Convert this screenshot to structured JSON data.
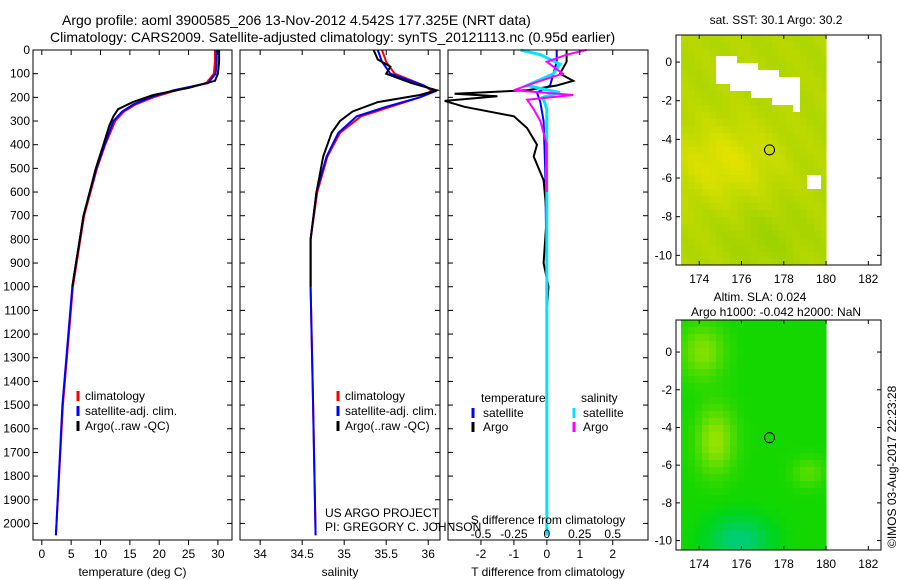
{
  "chart_data": {
    "title": "Argo profile: aoml 3900585_206 13-Nov-2012 4.542S 177.325E (NRT data)",
    "subtitle": "Climatology: CARS2009. Satellite-adjusted climatology: synTS_20121113.nc (0.95d earlier)",
    "depth_axis": {
      "ticks": [
        0,
        100,
        200,
        300,
        400,
        500,
        600,
        700,
        800,
        900,
        1000,
        1100,
        1200,
        1300,
        1400,
        1500,
        1600,
        1700,
        1800,
        1900,
        2000
      ],
      "ylim": [
        0,
        2070
      ]
    },
    "panels": [
      {
        "type": "line",
        "xlabel": "temperature (deg C)",
        "xlim": [
          -1.5,
          32.4
        ],
        "xticks": [
          0,
          5,
          10,
          15,
          20,
          25,
          30
        ],
        "legend": [
          "climatology",
          "satellite-adj. clim.",
          "Argo(..raw -QC)"
        ],
        "series": [
          {
            "name": "climatology",
            "color": "#ff0000",
            "depth": [
              0,
              50,
              100,
              140,
              170,
              200,
              230,
              260,
              300,
              400,
              500,
              700,
              1000,
              1500,
              2050
            ],
            "values": [
              29.5,
              29.5,
              29.3,
              28,
              23,
              19,
              16,
              14,
              12.5,
              10.8,
              9.4,
              7.2,
              5.3,
              3.6,
              2.4
            ]
          },
          {
            "name": "satellite-adj. clim.",
            "color": "#0000ff",
            "depth": [
              0,
              50,
              100,
              140,
              170,
              200,
              230,
              260,
              300,
              400,
              500,
              700,
              1000,
              1500,
              2050
            ],
            "values": [
              29.8,
              29.8,
              29.6,
              28.3,
              22.5,
              18.5,
              15.6,
              13.7,
              12.2,
              10.7,
              9.3,
              7.1,
              5.2,
              3.5,
              2.4
            ]
          },
          {
            "name": "Argo(..raw -QC)",
            "color": "#000000",
            "depth": [
              0,
              50,
              100,
              130,
              160,
              190,
              220,
              250,
              280,
              320,
              400,
              500,
              700,
              1000
            ],
            "values": [
              30.2,
              30.2,
              30,
              29.5,
              25,
              19,
              15.5,
              13,
              12.2,
              11.5,
              10.5,
              9.2,
              7.1,
              5.2
            ]
          }
        ]
      },
      {
        "type": "line",
        "xlabel": "salinity",
        "xlim": [
          33.76,
          36.14
        ],
        "xticks": [
          34,
          34.5,
          35,
          35.5,
          36
        ],
        "xticklabels": [
          "34",
          "34.5",
          "35",
          "35.5",
          "36"
        ],
        "legend": [
          "climatology",
          "satellite-adj. clim.",
          "Argo(..raw -QC)"
        ],
        "annotation": [
          "US ARGO PROJECT",
          "PI: GREGORY C. JOHNSON"
        ],
        "series": [
          {
            "name": "climatology",
            "color": "#ff0000",
            "depth": [
              0,
              50,
              100,
              150,
              175,
              200,
              240,
              280,
              350,
              450,
              600,
              800,
              1000,
              1500,
              2050
            ],
            "values": [
              35.45,
              35.5,
              35.6,
              35.95,
              36.05,
              35.9,
              35.55,
              35.2,
              34.95,
              34.8,
              34.68,
              34.6,
              34.6,
              34.63,
              34.66
            ]
          },
          {
            "name": "satellite-adj. clim.",
            "color": "#0000ff",
            "depth": [
              0,
              50,
              100,
              150,
              175,
              200,
              240,
              280,
              350,
              450,
              600,
              800,
              1000,
              1500,
              2050
            ],
            "values": [
              35.4,
              35.45,
              35.55,
              35.95,
              36.08,
              35.9,
              35.5,
              35.15,
              34.93,
              34.79,
              34.67,
              34.6,
              34.6,
              34.63,
              34.66
            ]
          },
          {
            "name": "Argo(..raw -QC)",
            "color": "#000000",
            "depth": [
              0,
              40,
              70,
              100,
              140,
              170,
              190,
              220,
              260,
              300,
              350,
              450,
              600,
              800,
              1000
            ],
            "values": [
              35.35,
              35.4,
              35.55,
              35.5,
              35.8,
              36.1,
              35.9,
              35.4,
              35.1,
              34.95,
              34.85,
              34.75,
              34.67,
              34.6,
              34.6
            ]
          }
        ]
      },
      {
        "type": "line",
        "xlabel": "T difference from climatology",
        "xlabel2": "S difference from climatology",
        "xlim": [
          -3.0,
          3.07
        ],
        "xticks": [
          -2,
          -1,
          0,
          1,
          2
        ],
        "xticks2": [
          -0.5,
          -0.25,
          0,
          0.25,
          0.5
        ],
        "legend_headers": [
          "temperature",
          "salinity"
        ],
        "legend": [
          "satellite",
          "Argo",
          "satellite",
          "Argo"
        ],
        "series": [
          {
            "name": "temperature satellite",
            "color": "#0000ff",
            "depth": [
              0,
              50,
              100,
              150,
              180,
              220,
              300,
              500,
              1000,
              2050
            ],
            "values": [
              0.3,
              0.3,
              0.2,
              0.1,
              -0.3,
              -0.2,
              -0.1,
              -0.05,
              0,
              0
            ]
          },
          {
            "name": "temperature Argo",
            "color": "#000000",
            "depth": [
              0,
              50,
              100,
              130,
              150,
              170,
              185,
              195,
              215,
              240,
              280,
              330,
              400,
              450,
              550,
              700,
              900,
              1000,
              1100
            ],
            "values": [
              0.6,
              0.6,
              0.4,
              0.8,
              0.3,
              -0.6,
              -2.8,
              -1.5,
              -3.1,
              -2.5,
              -1,
              -0.6,
              -0.3,
              -0.4,
              -0.1,
              0,
              -0.1,
              0.05,
              0
            ]
          },
          {
            "name": "salinity satellite",
            "color": "#00e5ff",
            "depth": [
              0,
              20,
              60,
              100,
              150,
              180,
              200,
              250,
              300,
              500,
              1000,
              2050
            ],
            "values": [
              -0.2,
              -0.05,
              0.1,
              0.05,
              -0.15,
              0.1,
              -0.03,
              0,
              0,
              0,
              0,
              0
            ]
          },
          {
            "name": "salinity Argo",
            "color": "#ff00ff",
            "depth": [
              0,
              20,
              50,
              100,
              140,
              170,
              190,
              210,
              250,
              300,
              400,
              600
            ],
            "values": [
              0.3,
              0.15,
              0,
              0.12,
              -0.1,
              -0.25,
              0.2,
              -0.15,
              -0.1,
              -0.05,
              0,
              0
            ]
          }
        ]
      }
    ],
    "maps": [
      {
        "title": "sat. SST: 30.1  Argo: 30.2",
        "xticks": [
          174,
          176,
          178,
          180,
          182
        ],
        "yticks": [
          0,
          -2,
          -4,
          -6,
          -8,
          -10
        ],
        "xlim": [
          172.9,
          182.6
        ],
        "ylim": [
          -10.5,
          1.4
        ],
        "marker": [
          177.325,
          -4.542
        ]
      },
      {
        "title": "Altim. SLA: 0.024",
        "title2": "Argo h1000: -0.042 h2000: NaN",
        "xticks": [
          174,
          176,
          178,
          180,
          182
        ],
        "yticks": [
          0,
          -2,
          -4,
          -6,
          -8,
          -10
        ],
        "xlim": [
          172.9,
          182.6
        ],
        "ylim": [
          -10.5,
          1.7
        ],
        "marker": [
          177.325,
          -4.542
        ]
      }
    ],
    "credit": "©IMOS 03-Aug-2017 22:23:28"
  }
}
